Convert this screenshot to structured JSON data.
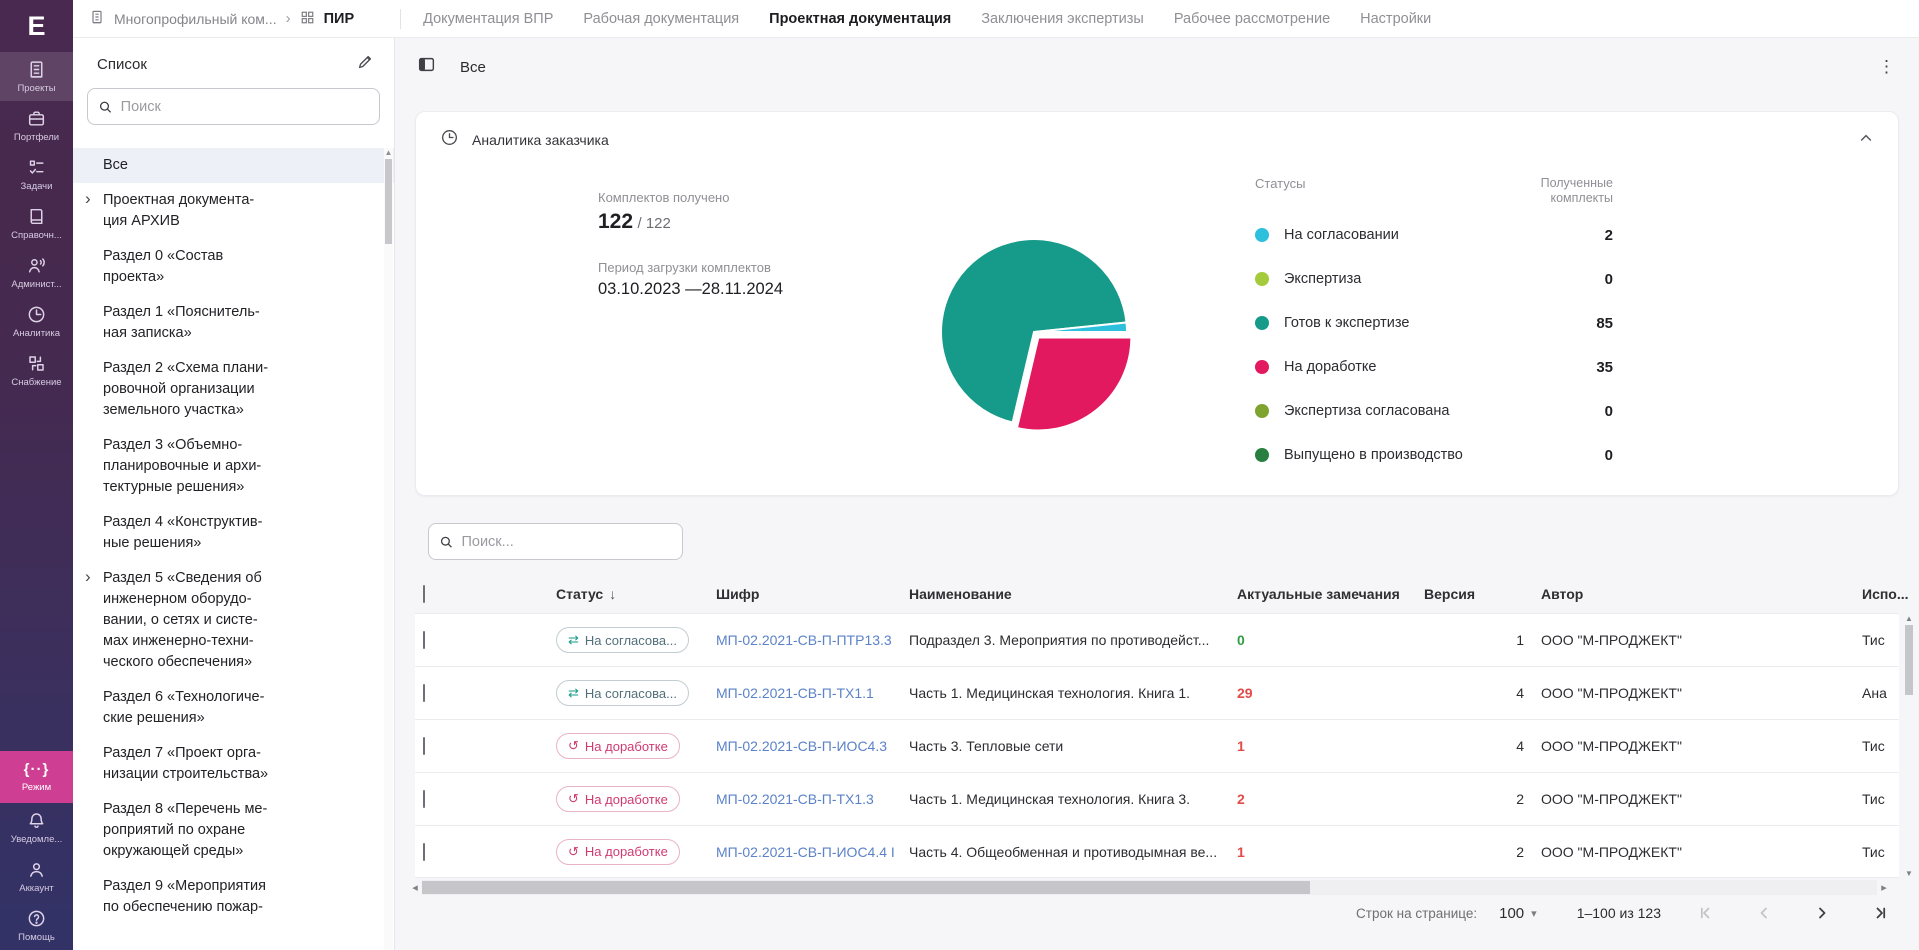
{
  "sidebar": {
    "logo": "E",
    "items": [
      {
        "label": "Проекты",
        "icon": "projects-icon",
        "active": true
      },
      {
        "label": "Портфели",
        "icon": "portfolios-icon"
      },
      {
        "label": "Задачи",
        "icon": "tasks-icon"
      },
      {
        "label": "Справочн...",
        "icon": "reference-icon"
      },
      {
        "label": "Админист...",
        "icon": "admin-icon"
      },
      {
        "label": "Аналитика",
        "icon": "analytics-icon"
      },
      {
        "label": "Снабжение",
        "icon": "supply-icon"
      }
    ],
    "bottom_items": [
      {
        "label": "Режим",
        "icon": "mode-icon",
        "highlight": true
      },
      {
        "label": "Уведомле...",
        "icon": "notifications-icon"
      },
      {
        "label": "Аккаунт",
        "icon": "account-icon"
      },
      {
        "label": "Помощь",
        "icon": "help-icon"
      }
    ]
  },
  "topbar": {
    "breadcrumb_project": "Многопрофильный ком...",
    "breadcrumb_current": "ПИР",
    "tabs": [
      {
        "label": "Документация ВПР"
      },
      {
        "label": "Рабочая документация"
      },
      {
        "label": "Проектная документация",
        "active": true
      },
      {
        "label": "Заключения экспертизы"
      },
      {
        "label": "Рабочее рассмотрение"
      },
      {
        "label": "Настройки"
      }
    ]
  },
  "left_panel": {
    "title": "Список",
    "search_placeholder": "Поиск",
    "items": [
      {
        "text": "Все",
        "selected": true
      },
      {
        "text": "Проектная документа-\nция АРХИВ",
        "chevron": true
      },
      {
        "text": "Раздел 0 «Состав\nпроекта»"
      },
      {
        "text": "Раздел 1 «Пояснитель-\nная записка»"
      },
      {
        "text": "Раздел 2 «Схема плани-\nровочной организации\nземельного участка»"
      },
      {
        "text": "Раздел 3 «Объемно-\nпланировочные и архи-\nтектурные решения»"
      },
      {
        "text": "Раздел 4 «Конструктив-\nные решения»"
      },
      {
        "text": "Раздел 5 «Сведения об\nинженерном оборудо-\nвании, о сетях и систе-\nмах инженерно-техни-\nческого обеспечения»",
        "chevron": true
      },
      {
        "text": "Раздел 6 «Технологиче-\nские решения»"
      },
      {
        "text": "Раздел 7 «Проект орга-\nнизации строительства»"
      },
      {
        "text": "Раздел 8 «Перечень ме-\nроприятий по охране\nокружающей среды»"
      },
      {
        "text": "Раздел 9 «Мероприятия\nпо обеспечению пожар-"
      }
    ]
  },
  "main": {
    "view_title": "Все",
    "analytics_title": "Аналитика заказчика",
    "search_placeholder": "Поиск...",
    "table": {
      "col_status": "Статус",
      "col_code": "Шифр",
      "col_name": "Наименование",
      "col_remarks": "Актуальные замечания",
      "col_version": "Версия",
      "col_author": "Автор",
      "col_extra": "Испо...",
      "rows": [
        {
          "status": "На согласова...",
          "status_kind": "approval",
          "code": "МП-02.2021-СВ-П-ПТР13.3",
          "name": "Подраздел 3. Мероприятия по противодейст...",
          "remarks": "0",
          "remarks_color": "green",
          "version": "1",
          "author": "ООО \"М-ПРОДЖЕКТ\"",
          "extra": "Тис"
        },
        {
          "status": "На согласова...",
          "status_kind": "approval",
          "code": "МП-02.2021-СВ-П-ТХ1.1",
          "name": "Часть 1. Медицинская технология. Книга 1.",
          "remarks": "29",
          "remarks_color": "red",
          "version": "4",
          "author": "ООО \"М-ПРОДЖЕКТ\"",
          "extra": "Ана"
        },
        {
          "status": "На доработке",
          "status_kind": "rework",
          "code": "МП-02.2021-СВ-П-ИОС4.3",
          "name": "Часть 3. Тепловые сети",
          "remarks": "1",
          "remarks_color": "red",
          "version": "4",
          "author": "ООО \"М-ПРОДЖЕКТ\"",
          "extra": "Тис"
        },
        {
          "status": "На доработке",
          "status_kind": "rework",
          "code": "МП-02.2021-СВ-П-ТХ1.3",
          "name": "Часть 1. Медицинская технология. Книга 3.",
          "remarks": "2",
          "remarks_color": "red",
          "version": "2",
          "author": "ООО \"М-ПРОДЖЕКТ\"",
          "extra": "Тис"
        },
        {
          "status": "На доработке",
          "status_kind": "rework",
          "code": "МП-02.2021-СВ-П-ИОС4.4 I",
          "name": "Часть 4. Общеобменная и противодымная ве...",
          "remarks": "1",
          "remarks_color": "red",
          "version": "2",
          "author": "ООО \"М-ПРОДЖЕКТ\"",
          "extra": "Тис"
        }
      ]
    },
    "pagination": {
      "rows_label": "Строк на странице:",
      "rows_value": "100",
      "range": "1–100 из 123"
    }
  },
  "chart_data": {
    "type": "pie",
    "title": "Аналитика заказчика",
    "legend_header": "Статусы",
    "value_header": "Полученные комплекты",
    "labels": [
      "На согласовании",
      "Экспертиза",
      "Готов к экспертизе",
      "На доработке",
      "Экспертиза согласована",
      "Выпущено в производство"
    ],
    "values": [
      2,
      0,
      85,
      35,
      0,
      0
    ],
    "colors": [
      "#2cc0dd",
      "#a3cb3b",
      "#169a89",
      "#e2195f",
      "#7ea32f",
      "#27803f"
    ],
    "received_label": "Комплектов получено",
    "received_main": "122",
    "received_total": "/ 122",
    "period_label": "Период загрузки комплектов",
    "period_value": "03.10.2023 —28.11.2024"
  }
}
